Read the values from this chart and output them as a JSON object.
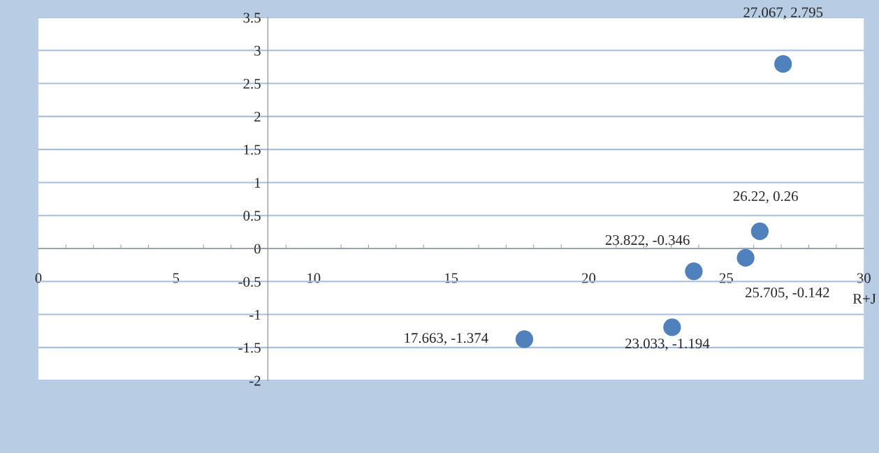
{
  "chart_data": {
    "type": "scatter",
    "xlabel": "R+J",
    "x": [
      17.663,
      23.033,
      23.822,
      25.705,
      26.22,
      27.067
    ],
    "series": [
      {
        "color": "#4f81bd",
        "values": [
          -1.374,
          -1.194,
          -0.346,
          -0.142,
          0.26,
          2.795
        ],
        "value_labels": [
          "17.663, -1.374",
          "23.033, -1.194",
          "23.822, -0.346",
          "25.705, -0.142",
          "26.22, 0.26",
          "27.067, 2.795"
        ]
      }
    ],
    "xlim": [
      0,
      30
    ],
    "xticks": [
      0,
      5,
      10,
      15,
      20,
      25,
      30
    ],
    "ylim": [
      -2,
      3.5
    ],
    "yticks": [
      -2,
      -1.5,
      -1,
      -0.5,
      0,
      0.5,
      1,
      1.5,
      2,
      2.5,
      3,
      3.5
    ],
    "grid": "y",
    "marker": "circle"
  }
}
